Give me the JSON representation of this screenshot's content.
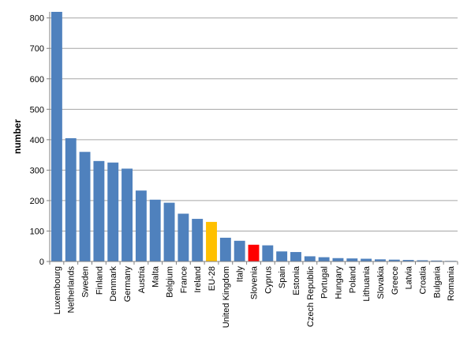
{
  "chart_data": {
    "type": "bar",
    "title": "",
    "xlabel": "",
    "ylabel": "number",
    "ylim": [
      0,
      820
    ],
    "yticks": [
      0,
      100,
      200,
      300,
      400,
      500,
      600,
      700,
      800
    ],
    "grid": true,
    "legend": "none",
    "categories": [
      "Luxembourg",
      "Netherlands",
      "Sweden",
      "Finland",
      "Denmark",
      "Germany",
      "Austria",
      "Malta",
      "Belgium",
      "France",
      "Ireland",
      "EU-28",
      "United Kingdom",
      "Italy",
      "Slovenia",
      "Cyprus",
      "Spain",
      "Estonia",
      "Czech Republic",
      "Portugal",
      "Hungary",
      "Poland",
      "Lithuania",
      "Slovakia",
      "Greece",
      "Latvia",
      "Croatia",
      "Bulgaria",
      "Romania"
    ],
    "values": [
      820,
      405,
      360,
      330,
      325,
      305,
      233,
      203,
      193,
      157,
      140,
      130,
      78,
      68,
      55,
      53,
      33,
      31,
      17,
      14,
      11,
      10,
      9,
      7,
      6,
      5,
      4,
      3,
      2
    ],
    "colors": {
      "default": "#4f81bd",
      "EU-28": "#ffc000",
      "Slovenia": "#ff0000",
      "grid": "#a6a6a6",
      "axis": "#808080"
    }
  }
}
